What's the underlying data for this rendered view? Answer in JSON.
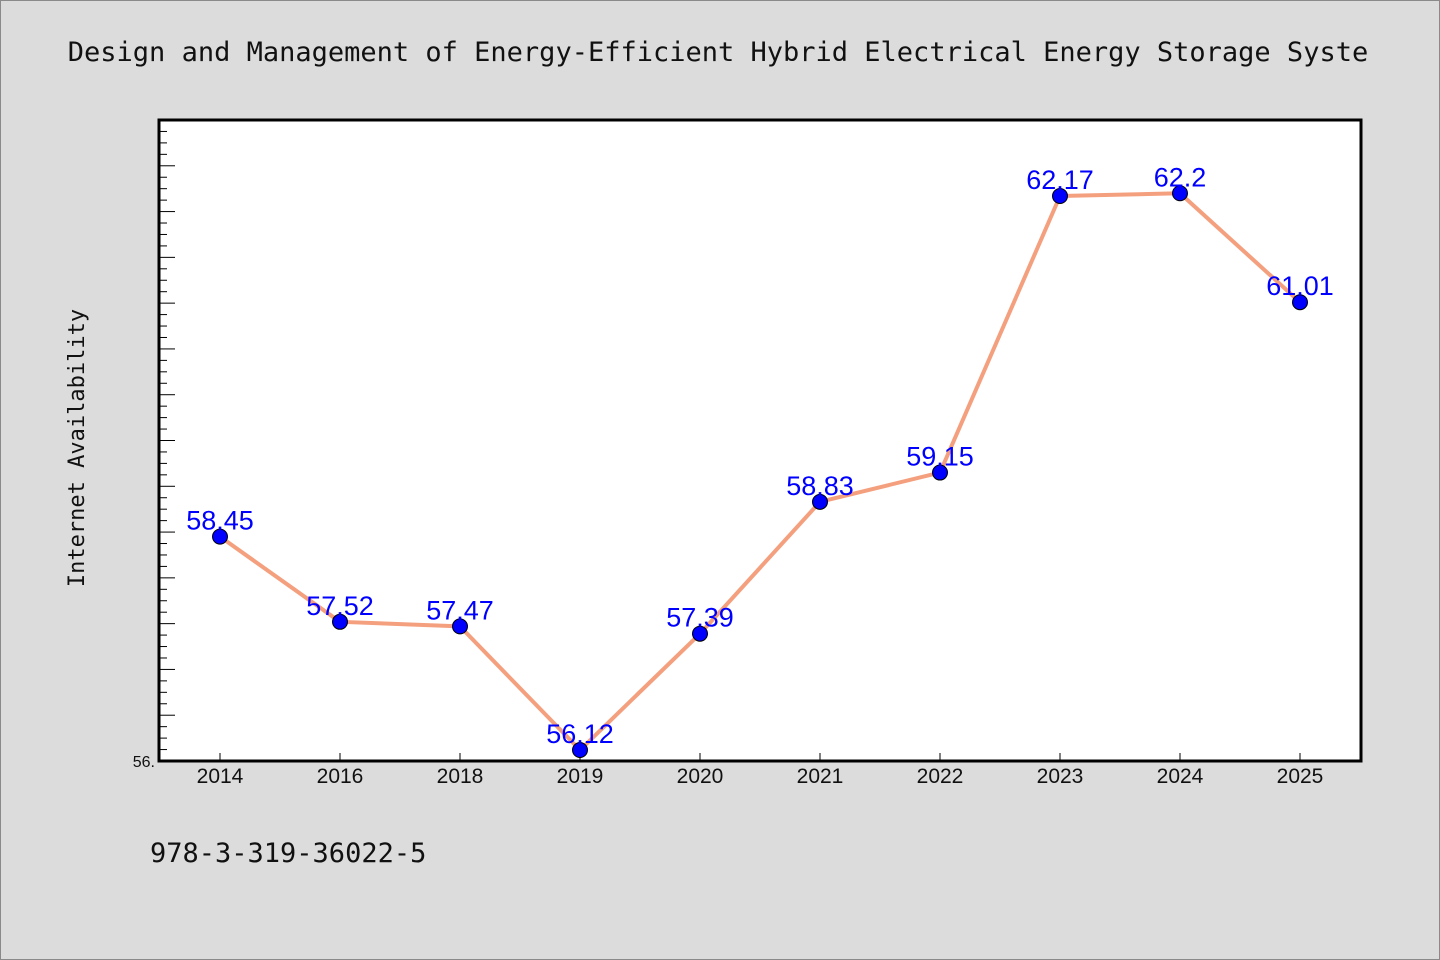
{
  "footnote": "978-3-319-36022-5",
  "colors": {
    "background": "#dcdcdc",
    "plot_background": "#ffffff",
    "line": "#f4a07e",
    "marker": "#0000ff",
    "label": "#0000ff"
  },
  "chart_data": {
    "type": "line",
    "title": "Design and Management of Energy-Efficient Hybrid Electrical Energy Storage Syste",
    "xlabel": "",
    "ylabel": "Internet Availability",
    "categories": [
      "2014",
      "2016",
      "2018",
      "2019",
      "2020",
      "2021",
      "2022",
      "2023",
      "2024",
      "2025"
    ],
    "series": [
      {
        "name": "",
        "values": [
          58.45,
          57.52,
          57.47,
          56.12,
          57.39,
          58.83,
          59.15,
          62.17,
          62.2,
          61.01
        ],
        "labels": [
          "58.45",
          "57.52",
          "57.47",
          "56.12",
          "57.39",
          "58.83",
          "59.15",
          "62.17",
          "62.2",
          "61.01"
        ]
      }
    ],
    "ylim": [
      56.0,
      63.0
    ],
    "yticks_labeled": [
      "56."
    ],
    "grid": false,
    "legend": "none"
  }
}
